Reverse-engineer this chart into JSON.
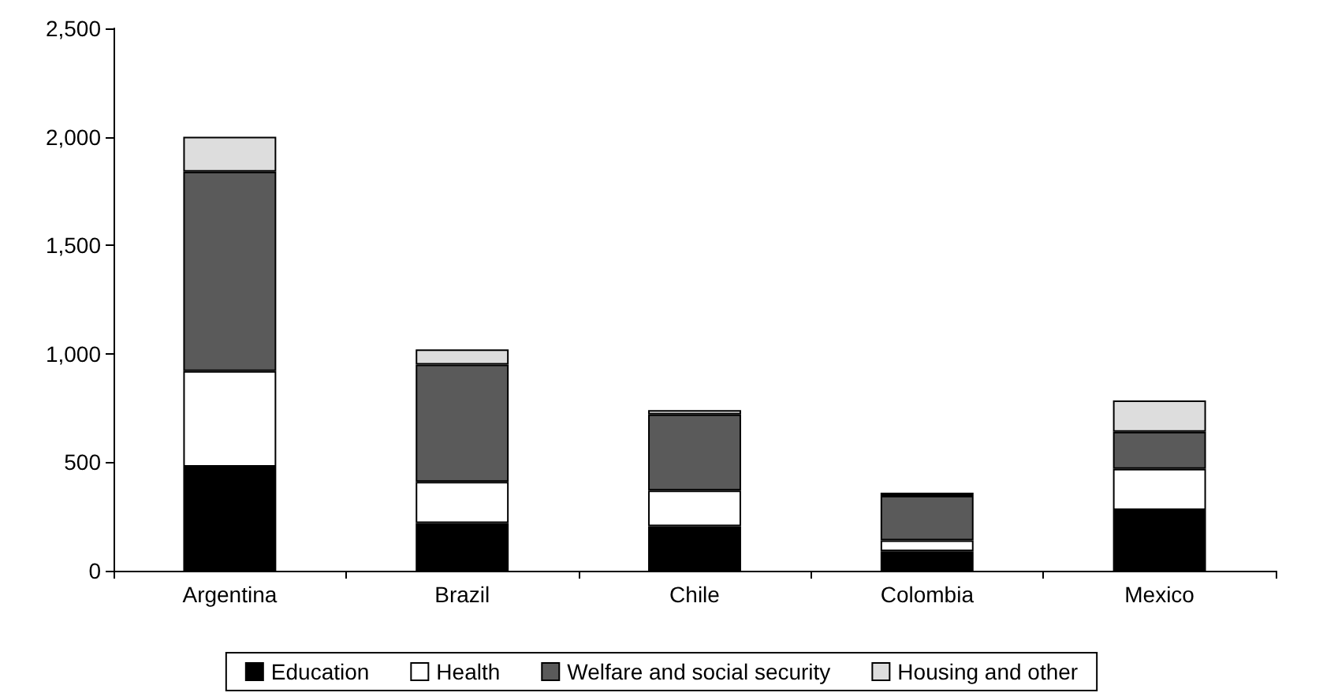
{
  "chart_data": {
    "type": "bar",
    "stacked": true,
    "categories": [
      "Argentina",
      "Brazil",
      "Chile",
      "Colombia",
      "Mexico"
    ],
    "series": [
      {
        "name": "Education",
        "color": "#000000",
        "values": [
          480,
          220,
          205,
          90,
          280
        ]
      },
      {
        "name": "Health",
        "color": "#ffffff",
        "values": [
          440,
          190,
          165,
          50,
          190
        ]
      },
      {
        "name": "Welfare and social security",
        "color": "#5a5a5a",
        "values": [
          920,
          540,
          350,
          205,
          170
        ]
      },
      {
        "name": "Housing and other",
        "color": "#dddddd",
        "values": [
          160,
          70,
          20,
          15,
          145
        ]
      }
    ],
    "ylim": [
      0,
      2500
    ],
    "yticks": [
      {
        "value": 0,
        "label": "0"
      },
      {
        "value": 500,
        "label": "500"
      },
      {
        "value": 1000,
        "label": "1,000"
      },
      {
        "value": 1500,
        "label": "1,500"
      },
      {
        "value": 2000,
        "label": "2,000"
      },
      {
        "value": 2500,
        "label": "2,500"
      }
    ],
    "grid": false,
    "legend": "bottom"
  }
}
